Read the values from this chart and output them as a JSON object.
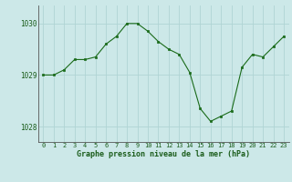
{
  "x": [
    0,
    1,
    2,
    3,
    4,
    5,
    6,
    7,
    8,
    9,
    10,
    11,
    12,
    13,
    14,
    15,
    16,
    17,
    18,
    19,
    20,
    21,
    22,
    23
  ],
  "y": [
    1029.0,
    1029.0,
    1029.1,
    1029.3,
    1029.3,
    1029.35,
    1029.6,
    1029.75,
    1030.0,
    1030.0,
    1029.85,
    1029.65,
    1029.5,
    1029.4,
    1029.05,
    1028.35,
    1028.1,
    1028.2,
    1028.3,
    1029.15,
    1029.4,
    1029.35,
    1029.55,
    1029.75
  ],
  "line_color": "#1a6b1a",
  "marker_color": "#1a6b1a",
  "bg_color": "#cce8e8",
  "grid_color": "#b0d4d4",
  "xlabel": "Graphe pression niveau de la mer (hPa)",
  "yticks": [
    1028,
    1029,
    1030
  ],
  "ylim": [
    1027.7,
    1030.35
  ],
  "xlim": [
    -0.5,
    23.5
  ],
  "xticks": [
    0,
    1,
    2,
    3,
    4,
    5,
    6,
    7,
    8,
    9,
    10,
    11,
    12,
    13,
    14,
    15,
    16,
    17,
    18,
    19,
    20,
    21,
    22,
    23
  ],
  "xlabel_fontsize": 6.0,
  "xtick_fontsize": 5.0,
  "ytick_fontsize": 5.5
}
